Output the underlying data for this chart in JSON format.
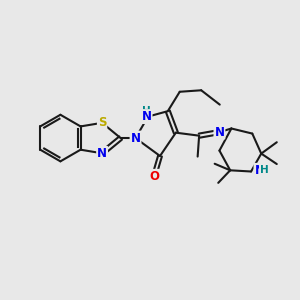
{
  "background_color": "#e8e8e8",
  "bond_color": "#1a1a1a",
  "bond_width": 1.5,
  "dbo": 0.055,
  "atoms": {
    "S": {
      "color": "#bbaa00"
    },
    "N": {
      "color": "#0000ee"
    },
    "O": {
      "color": "#ee0000"
    },
    "NH_teal": {
      "color": "#008888"
    },
    "C": {
      "color": "#1a1a1a"
    }
  },
  "fig_width": 3.0,
  "fig_height": 3.0,
  "dpi": 100,
  "xlim": [
    0,
    10
  ],
  "ylim": [
    0,
    10
  ]
}
